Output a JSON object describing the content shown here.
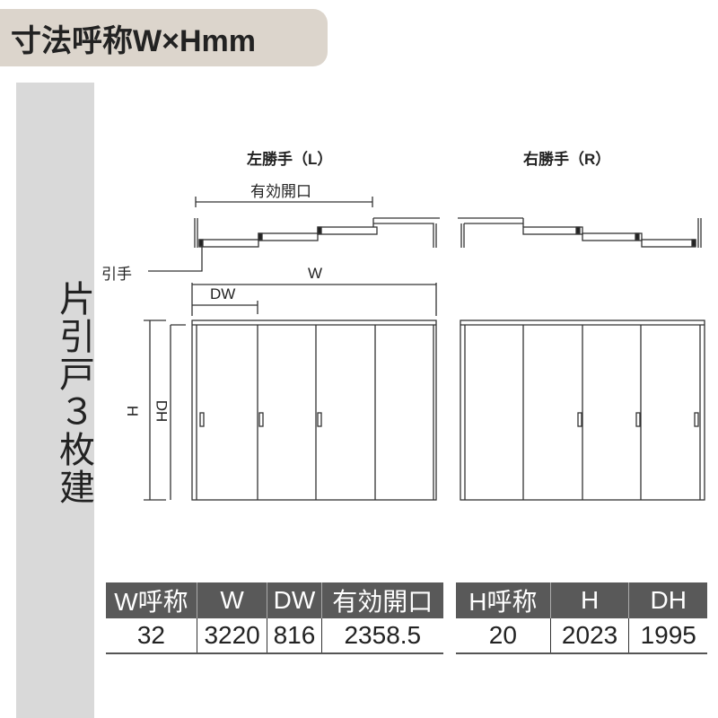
{
  "header": {
    "title": "寸法呼称W×Hmm"
  },
  "sidebar": {
    "label": "片引戸３枚建"
  },
  "diagram": {
    "left_title": "左勝手（L）",
    "right_title": "右勝手（R）",
    "effective_opening_label": "有効開口",
    "handle_label": "引手",
    "w_label": "W",
    "dw_label": "DW",
    "h_label": "H",
    "dh_label": "DH"
  },
  "table_w": {
    "headers": [
      "W呼称",
      "W",
      "DW",
      "有効開口"
    ],
    "values": [
      "32",
      "3220",
      "816",
      "2358.5"
    ]
  },
  "table_h": {
    "headers": [
      "H呼称",
      "H",
      "DH"
    ],
    "values": [
      "20",
      "2023",
      "1995"
    ]
  }
}
